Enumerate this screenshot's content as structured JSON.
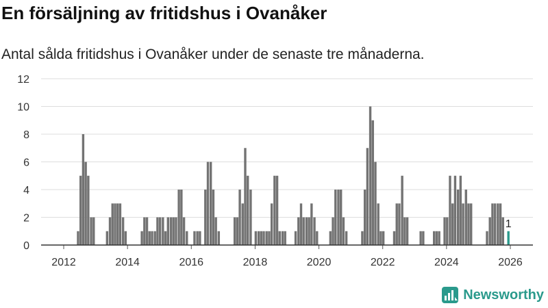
{
  "header": {
    "title": "En försäljning av fritidshus i Ovanåker",
    "subtitle": "Antal sålda fritidshus i Ovanåker under de senaste tre månaderna."
  },
  "brand": {
    "name": "Newsworthy"
  },
  "colors": {
    "bar": "#737373",
    "highlight": "#2a9a8c",
    "grid": "#dddddd"
  },
  "chart_data": {
    "type": "bar",
    "ylim": [
      0,
      12
    ],
    "yticks": [
      0,
      2,
      4,
      6,
      8,
      10,
      12
    ],
    "xticks": [
      {
        "label": "2012",
        "value": 2012.0
      },
      {
        "label": "2014",
        "value": 2014.0
      },
      {
        "label": "2016",
        "value": 2016.0
      },
      {
        "label": "2018",
        "value": 2018.0
      },
      {
        "label": "2020",
        "value": 2020.0
      },
      {
        "label": "2022",
        "value": 2022.0
      },
      {
        "label": "2024",
        "value": 2024.0
      },
      {
        "label": "2026",
        "value": 2026.0
      }
    ],
    "grid": true,
    "series": [
      {
        "values": [
          [
            2012.45,
            1
          ],
          [
            2012.53,
            5
          ],
          [
            2012.61,
            8
          ],
          [
            2012.69,
            6
          ],
          [
            2012.77,
            5
          ],
          [
            2012.86,
            2
          ],
          [
            2012.94,
            2
          ],
          [
            2013.36,
            1
          ],
          [
            2013.45,
            2
          ],
          [
            2013.53,
            3
          ],
          [
            2013.61,
            3
          ],
          [
            2013.69,
            3
          ],
          [
            2013.77,
            3
          ],
          [
            2013.86,
            2
          ],
          [
            2013.94,
            1
          ],
          [
            2014.45,
            1
          ],
          [
            2014.53,
            2
          ],
          [
            2014.61,
            2
          ],
          [
            2014.69,
            1
          ],
          [
            2014.77,
            1
          ],
          [
            2014.86,
            1
          ],
          [
            2014.94,
            2
          ],
          [
            2015.02,
            2
          ],
          [
            2015.11,
            2
          ],
          [
            2015.19,
            1
          ],
          [
            2015.27,
            2
          ],
          [
            2015.36,
            2
          ],
          [
            2015.44,
            2
          ],
          [
            2015.52,
            2
          ],
          [
            2015.61,
            4
          ],
          [
            2015.69,
            4
          ],
          [
            2015.77,
            2
          ],
          [
            2015.86,
            1
          ],
          [
            2016.1,
            1
          ],
          [
            2016.19,
            1
          ],
          [
            2016.27,
            1
          ],
          [
            2016.44,
            4
          ],
          [
            2016.52,
            6
          ],
          [
            2016.61,
            6
          ],
          [
            2016.69,
            4
          ],
          [
            2016.77,
            2
          ],
          [
            2016.86,
            1
          ],
          [
            2017.36,
            2
          ],
          [
            2017.44,
            2
          ],
          [
            2017.52,
            4
          ],
          [
            2017.61,
            3
          ],
          [
            2017.69,
            7
          ],
          [
            2017.77,
            5
          ],
          [
            2017.86,
            4
          ],
          [
            2018.02,
            1
          ],
          [
            2018.11,
            1
          ],
          [
            2018.19,
            1
          ],
          [
            2018.27,
            1
          ],
          [
            2018.36,
            1
          ],
          [
            2018.44,
            1
          ],
          [
            2018.52,
            3
          ],
          [
            2018.61,
            5
          ],
          [
            2018.69,
            5
          ],
          [
            2018.77,
            1
          ],
          [
            2018.86,
            1
          ],
          [
            2018.94,
            1
          ],
          [
            2019.27,
            1
          ],
          [
            2019.36,
            2
          ],
          [
            2019.44,
            3
          ],
          [
            2019.52,
            2
          ],
          [
            2019.61,
            2
          ],
          [
            2019.69,
            2
          ],
          [
            2019.77,
            3
          ],
          [
            2019.86,
            2
          ],
          [
            2019.94,
            1
          ],
          [
            2020.36,
            1
          ],
          [
            2020.44,
            2
          ],
          [
            2020.52,
            4
          ],
          [
            2020.61,
            4
          ],
          [
            2020.69,
            4
          ],
          [
            2020.77,
            2
          ],
          [
            2020.86,
            1
          ],
          [
            2021.36,
            1
          ],
          [
            2021.44,
            4
          ],
          [
            2021.52,
            7
          ],
          [
            2021.61,
            10
          ],
          [
            2021.69,
            9
          ],
          [
            2021.77,
            6
          ],
          [
            2021.86,
            3
          ],
          [
            2021.94,
            1
          ],
          [
            2022.02,
            1
          ],
          [
            2022.36,
            1
          ],
          [
            2022.44,
            3
          ],
          [
            2022.52,
            3
          ],
          [
            2022.61,
            5
          ],
          [
            2022.69,
            2
          ],
          [
            2022.77,
            2
          ],
          [
            2023.19,
            1
          ],
          [
            2023.27,
            1
          ],
          [
            2023.61,
            1
          ],
          [
            2023.69,
            1
          ],
          [
            2023.77,
            1
          ],
          [
            2023.94,
            2
          ],
          [
            2024.02,
            2
          ],
          [
            2024.11,
            5
          ],
          [
            2024.19,
            3
          ],
          [
            2024.27,
            5
          ],
          [
            2024.36,
            4
          ],
          [
            2024.44,
            5
          ],
          [
            2024.52,
            3
          ],
          [
            2024.61,
            4
          ],
          [
            2024.69,
            3
          ],
          [
            2024.77,
            3
          ],
          [
            2025.27,
            1
          ],
          [
            2025.36,
            2
          ],
          [
            2025.44,
            3
          ],
          [
            2025.52,
            3
          ],
          [
            2025.61,
            3
          ],
          [
            2025.69,
            3
          ],
          [
            2025.77,
            2
          ]
        ]
      }
    ],
    "highlight": {
      "x": 2025.94,
      "y": 1,
      "label": "1"
    }
  }
}
